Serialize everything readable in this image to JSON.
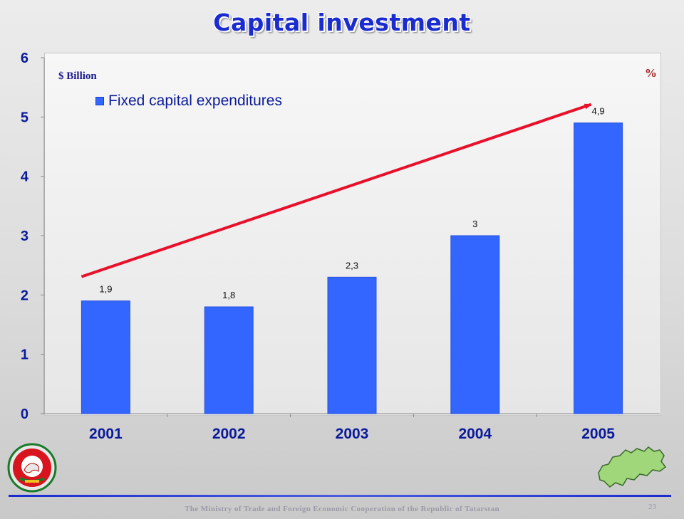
{
  "slide": {
    "title": "Capital investment",
    "unit_left": "$ Billion",
    "unit_right": "%",
    "footer": "The Ministry of Trade and Foreign Economic Cooperation of the Republic of Tatarstan",
    "page_number": "23"
  },
  "colors": {
    "bar": "#3366ff",
    "arrow": "#e8102a",
    "title": "#1a2bd0",
    "axis_text": "#0a1a9a"
  },
  "icons": {
    "emblem": "tatarstan-emblem-icon",
    "map": "tatarstan-map-icon"
  },
  "chart_data": {
    "type": "bar",
    "categories": [
      "2001",
      "2002",
      "2003",
      "2004",
      "2005"
    ],
    "series": [
      {
        "name": "Fixed capital expenditures",
        "values": [
          1.9,
          1.8,
          2.3,
          3,
          4.9
        ],
        "data_labels": [
          "1,9",
          "1,8",
          "2,3",
          "3",
          "4,9"
        ]
      }
    ],
    "ylim": [
      0,
      6
    ],
    "yticks": [
      "0",
      "1",
      "2",
      "3",
      "4",
      "5",
      "6"
    ],
    "grid": false,
    "legend": "top-left",
    "trend_arrow": true
  }
}
